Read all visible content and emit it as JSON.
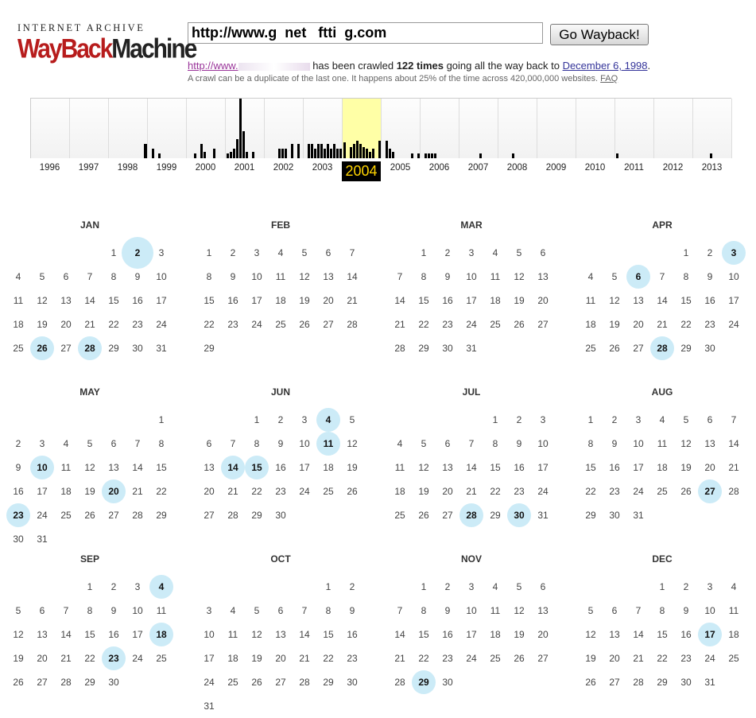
{
  "logo": {
    "top": "INTERNET ARCHIVE",
    "way": "WayBack",
    "machine": "Machine"
  },
  "search": {
    "value": "http://www.g  net   ftti  g.com",
    "button_label": "Go Wayback!"
  },
  "crawl": {
    "site_link": "http://www.",
    "text1": " has been crawled ",
    "count": "122 times",
    "text2": " going all the way back to ",
    "first_date": "December 6, 1998",
    "text3": "."
  },
  "note": {
    "text": "A crawl can be a duplicate of the last one. It happens about 25% of the time across 420,000,000 websites. ",
    "faq": "FAQ"
  },
  "timeline": {
    "selected_year": "2004",
    "years": [
      "1996",
      "1997",
      "1998",
      "1999",
      "2000",
      "2001",
      "2002",
      "2003",
      "2004",
      "2005",
      "2006",
      "2007",
      "2008",
      "2009",
      "2010",
      "2011",
      "2012",
      "2013"
    ]
  },
  "calendar": {
    "year": 2004,
    "months": [
      {
        "name": "JAN",
        "start": 4,
        "days": 31,
        "captures": [
          2,
          26,
          28
        ],
        "big": [
          2
        ]
      },
      {
        "name": "FEB",
        "start": 0,
        "days": 29,
        "captures": []
      },
      {
        "name": "MAR",
        "start": 1,
        "days": 31,
        "captures": []
      },
      {
        "name": "APR",
        "start": 4,
        "days": 30,
        "captures": [
          3,
          6,
          28
        ]
      },
      {
        "name": "MAY",
        "start": 6,
        "days": 31,
        "captures": [
          10,
          20,
          23
        ]
      },
      {
        "name": "JUN",
        "start": 2,
        "days": 30,
        "captures": [
          4,
          11,
          14,
          15
        ]
      },
      {
        "name": "JUL",
        "start": 4,
        "days": 31,
        "captures": [
          28,
          30
        ]
      },
      {
        "name": "AUG",
        "start": 0,
        "days": 31,
        "captures": [
          27
        ]
      },
      {
        "name": "SEP",
        "start": 3,
        "days": 30,
        "captures": [
          4,
          18,
          23
        ]
      },
      {
        "name": "OCT",
        "start": 5,
        "days": 31,
        "captures": []
      },
      {
        "name": "NOV",
        "start": 1,
        "days": 30,
        "captures": [
          29
        ]
      },
      {
        "name": "DEC",
        "start": 3,
        "days": 31,
        "captures": [
          17
        ]
      }
    ]
  }
}
